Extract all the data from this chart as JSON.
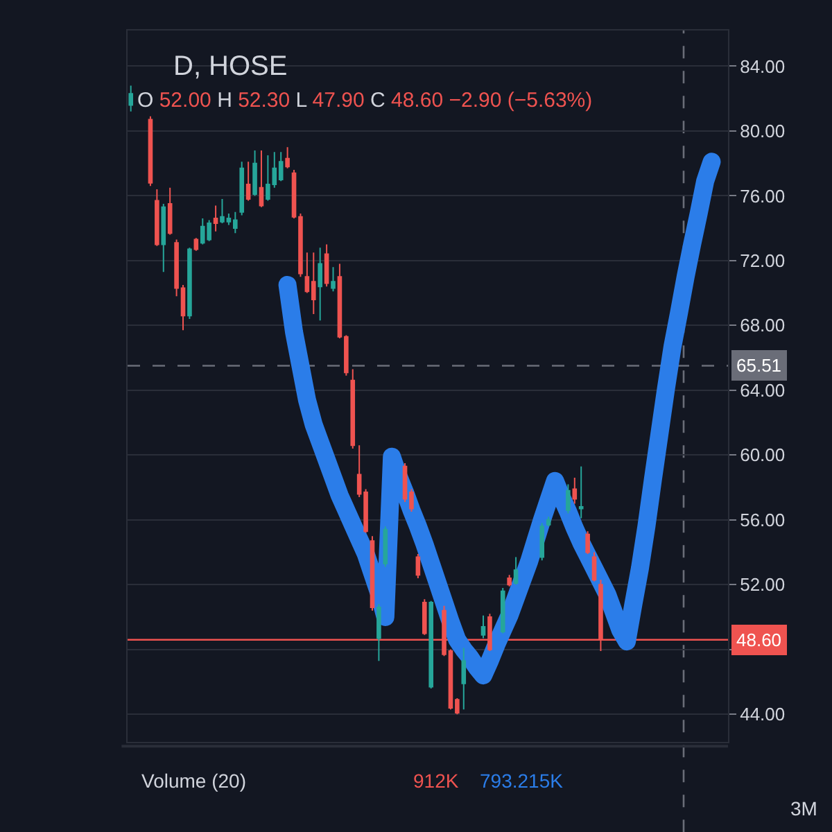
{
  "chart_data": {
    "type": "candlestick",
    "title": "D, HOSE",
    "subtitle": "O 52.00 H 52.30 L 47.90 C 48.60 −2.90 (−5.63%)",
    "annotations": [
      "Volume (20)",
      "912K",
      "793.215K",
      "3M"
    ],
    "categories": [
      null,
      null,
      null,
      null,
      null,
      null,
      null,
      null,
      null,
      null,
      null,
      null,
      null,
      null,
      null,
      null,
      null,
      null,
      null,
      null,
      null,
      null,
      null,
      null,
      null,
      null,
      null,
      null,
      null,
      null,
      null,
      null,
      null,
      null,
      null,
      null,
      null,
      null,
      null,
      null,
      null,
      null,
      null,
      null,
      null,
      null,
      null,
      null,
      null,
      null,
      null,
      null,
      null,
      null,
      null,
      null,
      null,
      null,
      null,
      null,
      null,
      null,
      null,
      null,
      null,
      null,
      null,
      null,
      null,
      null,
      null,
      null,
      null,
      null,
      null,
      null,
      null,
      null,
      null,
      null,
      null,
      null,
      null,
      null,
      null,
      null,
      null,
      null,
      null,
      null,
      null,
      null
    ],
    "series": [
      {
        "type": "line",
        "color": "#2b7de9",
        "values": [
          null,
          null,
          null,
          null,
          null,
          null,
          null,
          null,
          null,
          null,
          null,
          null,
          null,
          null,
          null,
          null,
          null,
          null,
          null,
          null,
          null,
          null,
          null,
          null,
          70.5,
          67.6,
          65.5,
          63.4,
          61.9,
          60.8,
          59.7,
          58.6,
          57.5,
          56.6,
          55.7,
          54.8,
          53.9,
          52.7,
          51.5,
          50.0,
          59.9,
          58.7,
          57.7,
          56.6,
          55.6,
          54.5,
          53.3,
          52.1,
          50.9,
          49.7,
          48.6,
          48.0,
          47.5,
          46.9,
          46.4,
          47.3,
          48.3,
          49.2,
          50.1,
          51.2,
          52.3,
          53.4,
          54.7,
          56.0,
          57.2,
          58.4,
          57.4,
          56.5,
          55.5,
          54.6,
          53.8,
          53.0,
          52.2,
          51.4,
          50.3,
          49.2,
          48.5,
          50.8,
          53.0,
          55.6,
          58.5,
          61.3,
          64.1,
          66.7,
          68.8,
          71.0,
          73.0,
          74.9,
          76.9,
          78.1,
          null,
          null
        ]
      },
      {
        "color": "#26a69a",
        "ohlc": [
          [
            81.6,
            82.8,
            81.2,
            82.3
          ],
          null,
          null,
          null,
          null,
          [
            73.0,
            75.5,
            71.3,
            75.3
          ],
          null,
          null,
          null,
          [
            68.6,
            72.8,
            68.4,
            72.7
          ],
          null,
          [
            73.1,
            74.6,
            73.0,
            74.1
          ],
          [
            73.3,
            74.5,
            73.2,
            74.3
          ],
          null,
          [
            74.4,
            75.8,
            74.3,
            74.7
          ],
          [
            74.4,
            74.9,
            74.2,
            74.6
          ],
          [
            74.0,
            75.0,
            73.7,
            74.5
          ],
          [
            75.0,
            78.1,
            74.8,
            77.7
          ],
          null,
          [
            76.1,
            78.8,
            76.0,
            78.0
          ],
          null,
          [
            75.8,
            78.5,
            75.7,
            76.7
          ],
          [
            76.7,
            78.7,
            76.5,
            77.7
          ],
          [
            77.0,
            78.7,
            76.9,
            78.1
          ],
          null,
          null,
          null,
          null,
          null,
          [
            70.4,
            72.8,
            68.3,
            71.8
          ],
          null,
          [
            70.3,
            71.6,
            70.1,
            70.7
          ],
          null,
          null,
          null,
          null,
          null,
          null,
          [
            48.7,
            50.8,
            47.3,
            50.6
          ],
          [
            53.3,
            55.6,
            53.1,
            55.4
          ],
          null,
          null,
          null,
          null,
          null,
          null,
          [
            45.7,
            51.0,
            45.6,
            50.9
          ],
          null,
          null,
          null,
          null,
          [
            45.9,
            48.1,
            44.3,
            47.3
          ],
          null,
          null,
          [
            48.9,
            50.1,
            48.7,
            49.4
          ],
          null,
          null,
          [
            49.1,
            51.8,
            49.0,
            51.6
          ],
          null,
          [
            52.1,
            53.7,
            52.0,
            52.9
          ],
          null,
          null,
          null,
          [
            53.7,
            55.8,
            53.5,
            55.6
          ],
          [
            55.7,
            56.2,
            55.6,
            56.0
          ],
          null,
          null,
          [
            56.6,
            58.2,
            56.4,
            57.8
          ],
          null,
          [
            56.7,
            59.3,
            56.1,
            56.8
          ],
          null,
          null,
          null,
          null,
          null,
          null,
          null,
          null,
          null,
          null,
          null,
          null,
          null,
          null,
          null,
          null,
          null,
          null,
          null,
          null,
          null,
          null
        ]
      },
      {
        "color": "#ef5350",
        "ohlc": [
          null,
          null,
          null,
          [
            80.7,
            80.9,
            76.6,
            76.8
          ],
          [
            75.7,
            76.4,
            72.9,
            73.0
          ],
          null,
          [
            75.5,
            76.5,
            73.6,
            73.7
          ],
          [
            73.1,
            73.3,
            69.8,
            70.3
          ],
          [
            70.3,
            70.5,
            67.7,
            68.6
          ],
          null,
          [
            73.3,
            73.4,
            72.6,
            72.7
          ],
          null,
          null,
          [
            74.6,
            75.4,
            73.8,
            74.3
          ],
          null,
          null,
          null,
          null,
          [
            76.7,
            78.1,
            75.7,
            75.8
          ],
          null,
          [
            76.5,
            78.8,
            75.3,
            75.4
          ],
          null,
          null,
          null,
          [
            78.3,
            79.0,
            77.7,
            77.8
          ],
          [
            77.4,
            77.6,
            74.6,
            74.7
          ],
          [
            74.7,
            74.9,
            71.0,
            71.2
          ],
          [
            71.0,
            72.5,
            70.0,
            70.1
          ],
          [
            70.7,
            72.5,
            68.7,
            69.6
          ],
          null,
          [
            72.4,
            73.0,
            70.4,
            70.6
          ],
          null,
          [
            71.0,
            71.8,
            67.2,
            67.3
          ],
          [
            67.3,
            67.4,
            64.9,
            65.1
          ],
          [
            64.6,
            65.3,
            60.4,
            60.6
          ],
          [
            58.8,
            60.6,
            57.4,
            57.6
          ],
          [
            57.7,
            57.9,
            55.2,
            55.3
          ],
          [
            54.7,
            55.0,
            50.4,
            50.6
          ],
          null,
          null,
          null,
          null,
          [
            59.3,
            59.5,
            57.1,
            57.3
          ],
          [
            57.7,
            57.9,
            56.5,
            56.7
          ],
          [
            53.7,
            53.9,
            52.4,
            52.6
          ],
          [
            50.9,
            51.1,
            48.9,
            49.0
          ],
          null,
          null,
          [
            50.4,
            50.7,
            47.6,
            47.7
          ],
          [
            47.9,
            48.0,
            44.3,
            44.4
          ],
          [
            44.9,
            45.0,
            44.0,
            44.1
          ],
          null,
          null,
          null,
          null,
          [
            50.0,
            50.2,
            47.9,
            48.0
          ],
          null,
          null,
          [
            52.4,
            52.6,
            51.9,
            52.0
          ],
          null,
          null,
          null,
          null,
          null,
          null,
          null,
          null,
          null,
          [
            57.9,
            58.6,
            57.0,
            57.3
          ],
          null,
          [
            55.1,
            55.3,
            53.9,
            54.0
          ],
          [
            53.7,
            54.0,
            52.2,
            52.3
          ],
          [
            52.0,
            52.3,
            47.9,
            48.6
          ],
          null,
          null,
          null,
          null,
          null,
          null,
          null,
          null,
          null,
          null,
          null,
          null,
          null,
          null,
          null,
          null,
          null,
          null,
          null
        ]
      }
    ],
    "ylim": [
      42.3,
      86.2
    ],
    "yticks": [
      {
        "value": 44,
        "label": "44.00"
      },
      {
        "value": 48,
        "label": null
      },
      {
        "value": 52,
        "label": "52.00"
      },
      {
        "value": 56,
        "label": "56.00"
      },
      {
        "value": 60,
        "label": "60.00"
      },
      {
        "value": 64,
        "label": "64.00"
      },
      {
        "value": 68,
        "label": "68.00"
      },
      {
        "value": 72,
        "label": "72.00"
      },
      {
        "value": 76,
        "label": "76.00"
      },
      {
        "value": 80,
        "label": "80.00"
      },
      {
        "value": 84,
        "label": "84.00"
      }
    ],
    "ref_lines": [
      {
        "axis": "y",
        "value": 65.51,
        "label": "65.51",
        "color": "#6a6d78",
        "line_style": "dashed"
      },
      {
        "axis": "y",
        "value": 48.6,
        "label": "48.60",
        "color": "#ef5350",
        "line_style": "solid"
      }
    ],
    "grid": "y",
    "tick_labels": "y",
    "line_style": "solid"
  }
}
